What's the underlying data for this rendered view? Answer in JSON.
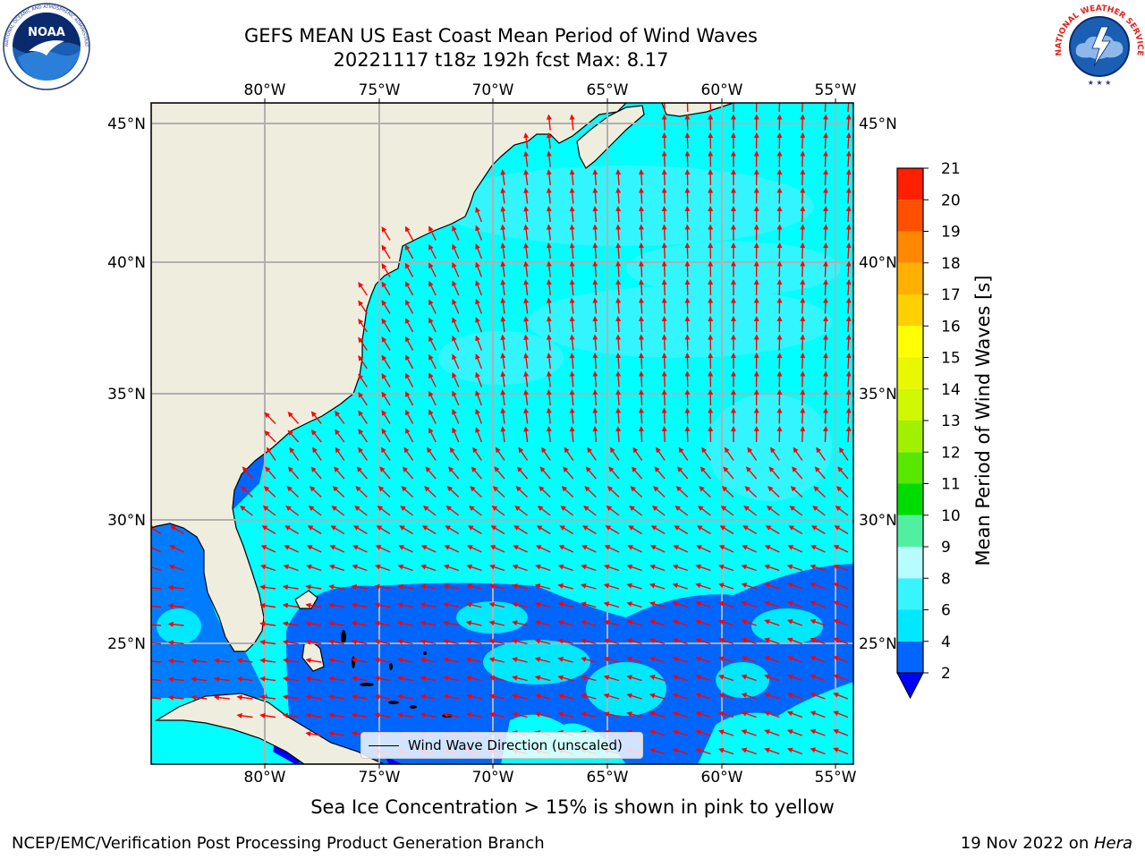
{
  "title": {
    "line1": "GEFS MEAN US East Coast Mean Period of Wind Waves",
    "line2": "20221117 t18z 192h fcst   Max: 8.17"
  },
  "map": {
    "region": "US East Coast / Western North Atlantic",
    "lon_range": [
      -85,
      -54
    ],
    "lat_range": [
      20.5,
      46
    ],
    "lon_ticks": [
      "80°W",
      "75°W",
      "70°W",
      "65°W",
      "60°W",
      "55°W"
    ],
    "lat_ticks": [
      "45°N",
      "40°N",
      "35°N",
      "30°N",
      "25°N"
    ],
    "gridlines": true,
    "land_color": "#efedde",
    "ocean_base_color": "#00ffff",
    "arrow_color": "#ff0000",
    "coast_color": "#000000"
  },
  "colorbar": {
    "title": "Mean Period of Wind Waves [s]",
    "ticks": [
      "2",
      "4",
      "6",
      "8",
      "9",
      "10",
      "11",
      "12",
      "13",
      "14",
      "15",
      "16",
      "17",
      "18",
      "19",
      "20",
      "21"
    ],
    "colors": [
      "#0066ff",
      "#00e8ff",
      "#38f4ff",
      "#88f8ff",
      "#b8fcff",
      "#50f0a0",
      "#00dc00",
      "#58e800",
      "#a0f000",
      "#d0f800",
      "#e8f800",
      "#ffff00",
      "#ffd000",
      "#ffb000",
      "#ff8800",
      "#ff5000",
      "#ff2000",
      "#ff0000"
    ],
    "min_extend_color": "#0000ff"
  },
  "legend": {
    "label": "Wind Wave Direction (unscaled)"
  },
  "footer": {
    "subtitle": "Sea Ice Concentration > 15% is shown in pink to yellow",
    "credit": "NCEP/EMC/Verification Post Processing Product Generation Branch",
    "date_prefix": "19 Nov 2022 on ",
    "date_machine": "Hera"
  },
  "logos": {
    "left": "noaa-logo",
    "right": "nws-logo",
    "left_ring_text": "NATIONAL OCEANIC AND ATMOSPHERIC ADMINISTRATION · U.S. DEPARTMENT OF COMMERCE",
    "left_center_text": "NOAA",
    "right_ring_text": "NATIONAL WEATHER SERVICE"
  }
}
